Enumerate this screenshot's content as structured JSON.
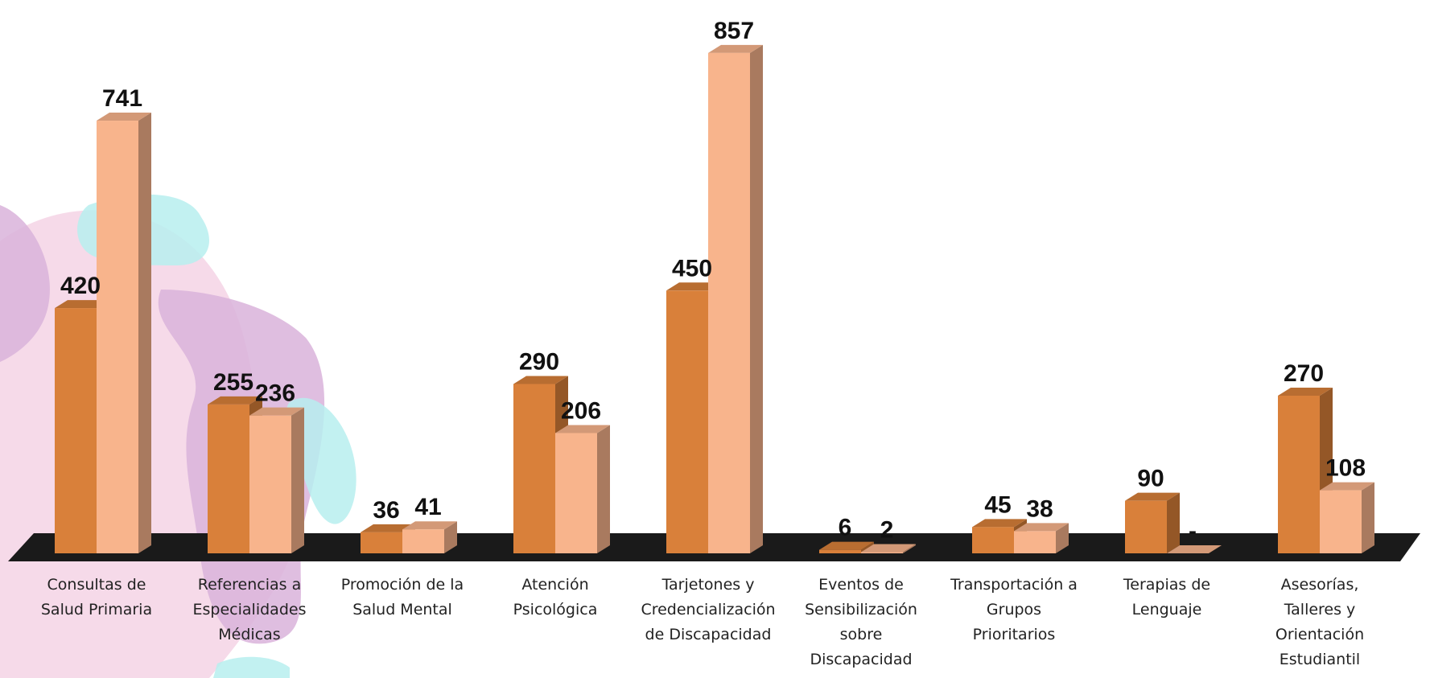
{
  "chart_data": {
    "type": "bar",
    "categories": [
      [
        "Consultas de",
        "Salud Primaria"
      ],
      [
        "Referencias a",
        "Especialidades",
        "Médicas"
      ],
      [
        "Promoción de la",
        "Salud Mental"
      ],
      [
        "Atención",
        "Psicológica"
      ],
      [
        "Tarjetones y",
        "Credencialización",
        "de Discapacidad"
      ],
      [
        "Eventos de",
        "Sensibilización",
        "sobre",
        "Discapacidad"
      ],
      [
        "Transportación a",
        "Grupos",
        "Prioritarios"
      ],
      [
        "Terapias de",
        "Lenguaje"
      ],
      [
        "Asesorías,",
        "Talleres y",
        "Orientación",
        "Estudiantil"
      ]
    ],
    "series": [
      {
        "values": [
          420,
          255,
          36,
          290,
          450,
          6,
          45,
          90,
          270
        ],
        "labels": [
          "420",
          "255",
          "36",
          "290",
          "450",
          "6",
          "45",
          "90",
          "270"
        ],
        "color": "#D9803A"
      },
      {
        "values": [
          741,
          236,
          41,
          206,
          857,
          2,
          38,
          0,
          108
        ],
        "labels": [
          "741",
          "236",
          "41",
          "206",
          "857",
          "2",
          "38",
          "-",
          "108"
        ],
        "color": "#F8B48C"
      }
    ],
    "ylim": [
      0,
      900
    ],
    "grid": false,
    "legend": "none",
    "floor_color": "#1A1A1A",
    "background_colors": [
      "#F4D3E5",
      "#D9B3DA",
      "#B7EFEE"
    ]
  }
}
